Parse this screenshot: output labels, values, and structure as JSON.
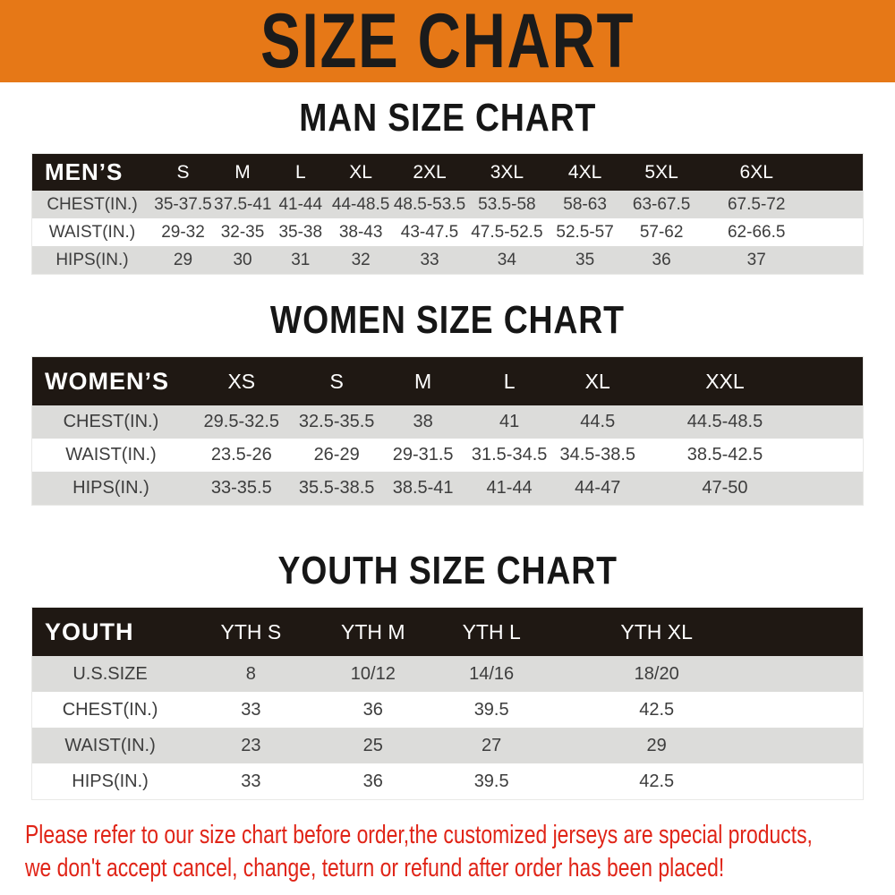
{
  "banner": {
    "title": "SIZE CHART"
  },
  "colors": {
    "banner_bg": "#E67817",
    "header_bg": "#1F1813",
    "row_alt": "#DCDCDA",
    "footer_red": "#E02417"
  },
  "sections": [
    {
      "id": "men",
      "heading": "MAN SIZE CHART",
      "table": {
        "header": [
          "MEN’S",
          "S",
          "M",
          "L",
          "XL",
          "2XL",
          "3XL",
          "4XL",
          "5XL",
          "6XL"
        ],
        "widths": [
          "14%",
          "8%",
          "7.4%",
          "7.6%",
          "8%",
          "9.8%",
          "10.2%",
          "10%",
          "9.8%",
          "15.2%"
        ],
        "rows": [
          {
            "label": "CHEST(IN.)",
            "values": [
              "35-37.5",
              "37.5-41",
              "41-44",
              "44-48.5",
              "48.5-53.5",
              "53.5-58",
              "58-63",
              "63-67.5",
              "67.5-72"
            ]
          },
          {
            "label": "WAIST(IN.)",
            "values": [
              "29-32",
              "32-35",
              "35-38",
              "38-43",
              "43-47.5",
              "47.5-52.5",
              "52.5-57",
              "57-62",
              "62-66.5"
            ]
          },
          {
            "label": "HIPS(IN.)",
            "values": [
              "29",
              "30",
              "31",
              "32",
              "33",
              "34",
              "35",
              "36",
              "37"
            ]
          }
        ]
      }
    },
    {
      "id": "women",
      "heading": "WOMEN SIZE CHART",
      "table": {
        "header": [
          "WOMEN’S",
          "XS",
          "S",
          "M",
          "L",
          "XL",
          "XXL"
        ],
        "widths": [
          "19%",
          "13.5%",
          "11.3%",
          "11.2%",
          "11.3%",
          "11.7%",
          "22%"
        ],
        "rows": [
          {
            "label": "CHEST(IN.)",
            "values": [
              "29.5-32.5",
              "32.5-35.5",
              "38",
              "41",
              "44.5",
              "44.5-48.5"
            ]
          },
          {
            "label": "WAIST(IN.)",
            "values": [
              "23.5-26",
              "26-29",
              "29-31.5",
              "31.5-34.5",
              "34.5-38.5",
              "38.5-42.5"
            ]
          },
          {
            "label": "HIPS(IN.)",
            "values": [
              "33-35.5",
              "35.5-38.5",
              "38.5-41",
              "41-44",
              "44-47",
              "47-50"
            ]
          }
        ]
      }
    },
    {
      "id": "youth",
      "heading": "YOUTH SIZE CHART",
      "table": {
        "header": [
          "YOUTH",
          "YTH S",
          "YTH M",
          "YTH L",
          "YTH XL"
        ],
        "widths": [
          "19.8%",
          "17.2%",
          "16.2%",
          "16.2%",
          "30.6%"
        ],
        "rows": [
          {
            "label": "U.S.SIZE",
            "values": [
              "8",
              "10/12",
              "14/16",
              "18/20"
            ]
          },
          {
            "label": "CHEST(IN.)",
            "values": [
              "33",
              "36",
              "39.5",
              "42.5"
            ]
          },
          {
            "label": "WAIST(IN.)",
            "values": [
              "23",
              "25",
              "27",
              "29"
            ]
          },
          {
            "label": "HIPS(IN.)",
            "values": [
              "33",
              "36",
              "39.5",
              "42.5"
            ]
          }
        ]
      }
    }
  ],
  "footer": {
    "line1": "Please refer to our size chart before order,the customized jerseys are special products,",
    "line2": "we don't accept cancel, change, teturn or refund after order has been placed!"
  }
}
